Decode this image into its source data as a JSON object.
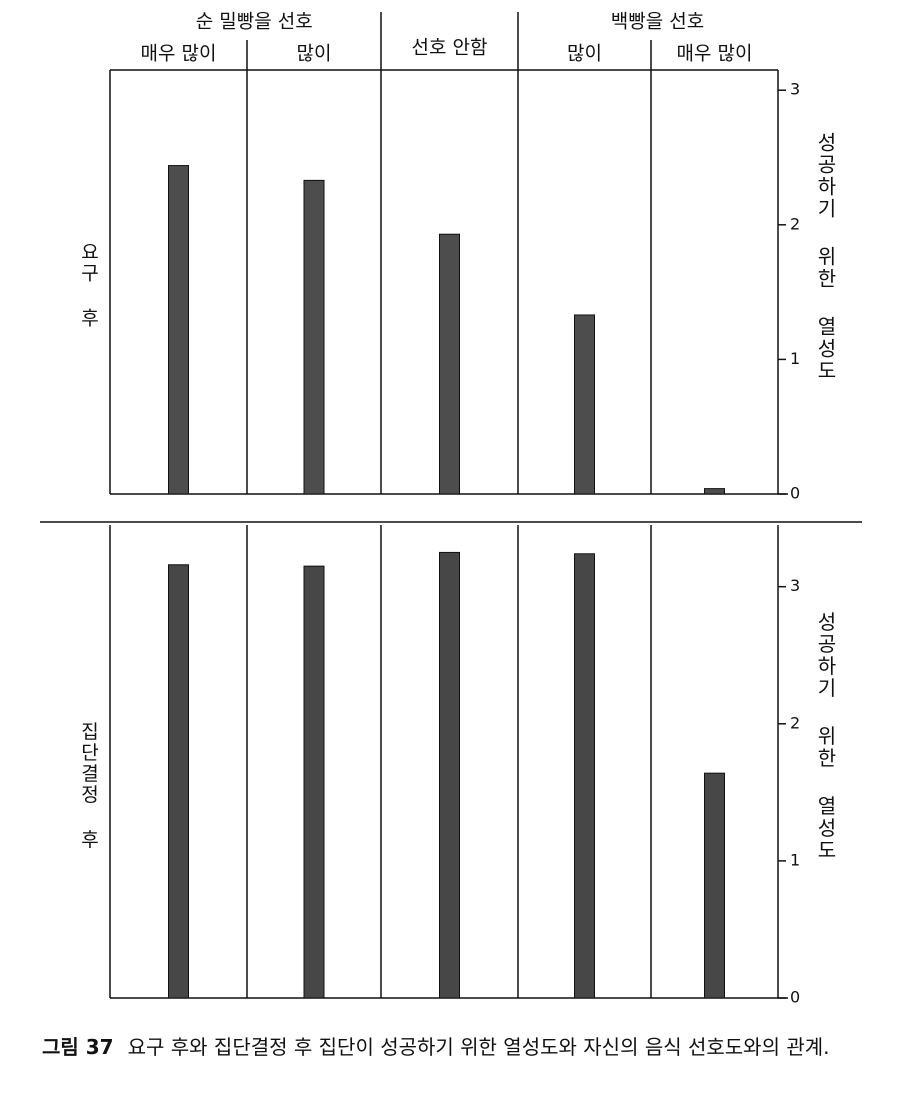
{
  "chart_data": {
    "type": "bar",
    "categories": [
      "매우 많이",
      "많이",
      "선호 안함",
      "많이",
      "매우 많이"
    ],
    "group_labels": [
      "순 밀빵을 선호",
      "백빵을 선호"
    ],
    "panels": [
      {
        "label": "요구 후",
        "y_label": "성공하기 위한 열성도",
        "color": "#4d4d4d",
        "values": [
          2.44,
          2.33,
          1.93,
          1.33,
          0.04
        ],
        "ylim": [
          0,
          3.15
        ],
        "yticks": [
          0,
          1,
          2,
          3
        ]
      },
      {
        "label": "집단결정 후",
        "y_label": "성공하기 위한 열성도",
        "color": "#474747",
        "values": [
          3.16,
          3.15,
          3.25,
          3.24,
          1.64
        ],
        "ylim": [
          0,
          3.45
        ],
        "yticks": [
          0,
          1,
          2,
          3
        ]
      }
    ]
  },
  "caption": {
    "figure": "그림 37",
    "text": "요구 후와 집단결정 후 집단이 성공하기 위한 열성도와 자신의 음식 선호도와의 관계."
  }
}
